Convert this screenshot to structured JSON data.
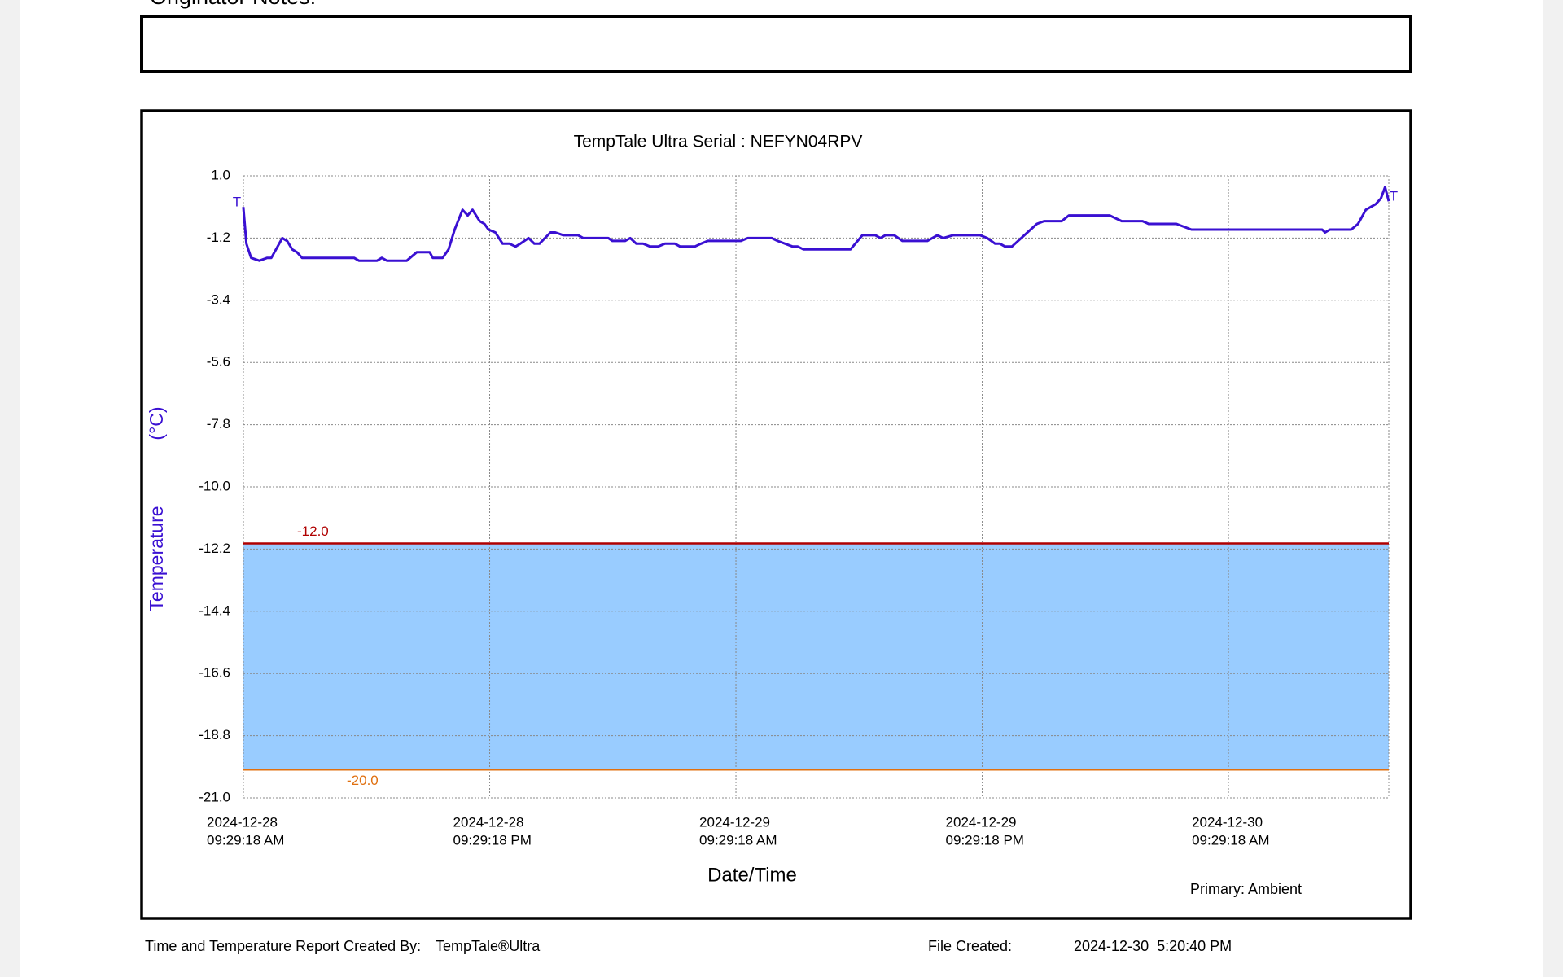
{
  "notes_label": "Originator Notes:",
  "chart_data": {
    "type": "line",
    "title": "TempTale Ultra  Serial : NEFYN04RPV",
    "xlabel": "Date/Time",
    "ylabel": "Temperature",
    "yunit": "(°C)",
    "note": "Primary: Ambient",
    "markers": [
      "T",
      "T"
    ],
    "ylim": [
      -21,
      1
    ],
    "yticks": [
      {
        "value": 1,
        "label": "1.0"
      },
      -1.2,
      -3.4,
      -5.6,
      -7.8,
      {
        "value": -10,
        "label": "-10.0"
      },
      -12.2,
      -14.4,
      -16.6,
      -18.8,
      {
        "value": -21,
        "label": "-21.0"
      }
    ],
    "xlim": [
      "2024-12-28 09:29:18",
      "2024-12-30 17:18"
    ],
    "xticks": [
      {
        "value": "2024-12-28 09:29:18",
        "label": [
          "2024-12-28",
          "09:29:18 AM"
        ]
      },
      {
        "value": "2024-12-28 21:29:18",
        "label": [
          "2024-12-28",
          "09:29:18 PM"
        ]
      },
      {
        "value": "2024-12-29 09:29:18",
        "label": [
          "2024-12-29",
          "09:29:18 AM"
        ]
      },
      {
        "value": "2024-12-29 21:29:18",
        "label": [
          "2024-12-29",
          "09:29:18 PM"
        ]
      },
      {
        "value": "2024-12-30 09:29:18",
        "label": [
          "2024-12-30",
          "09:29:18 AM"
        ]
      }
    ],
    "grid": true,
    "thresholds": [
      {
        "value": -12,
        "label": "-12.0",
        "color": "#b00000"
      },
      {
        "value": -20,
        "label": "-20.0",
        "color": "#e07010"
      }
    ],
    "band_color": "#99ccff",
    "x": [
      "2024-12-28 09:29",
      "2024-12-28 09:38",
      "2024-12-28 09:52",
      "2024-12-28 10:16",
      "2024-12-28 10:39",
      "2024-12-28 10:51",
      "2024-12-28 11:23",
      "2024-12-28 11:37",
      "2024-12-28 11:52",
      "2024-12-28 12:06",
      "2024-12-28 12:21",
      "2024-12-28 14:53",
      "2024-12-28 15:07",
      "2024-12-28 16:00",
      "2024-12-28 16:14",
      "2024-12-28 16:29",
      "2024-12-28 17:27",
      "2024-12-28 17:56",
      "2024-12-28 18:34",
      "2024-12-28 18:43",
      "2024-12-28 19:12",
      "2024-12-28 19:29",
      "2024-12-28 19:47",
      "2024-12-28 20:10",
      "2024-12-28 20:25",
      "2024-12-28 20:39",
      "2024-12-28 21:00",
      "2024-12-28 21:14",
      "2024-12-28 21:26",
      "2024-12-28 21:46",
      "2024-12-28 22:07",
      "2024-12-28 22:27",
      "2024-12-28 22:45",
      "2024-12-28 22:59",
      "2024-12-28 23:23",
      "2024-12-28 23:40",
      "2024-12-28 23:55",
      "2024-12-29 00:27",
      "2024-12-29 00:41",
      "2024-12-29 01:05",
      "2024-12-29 01:48",
      "2024-12-29 02:03",
      "2024-12-29 03:16",
      "2024-12-29 03:28",
      "2024-12-29 04:05",
      "2024-12-29 04:20",
      "2024-12-29 04:38",
      "2024-12-29 04:58",
      "2024-12-29 05:18",
      "2024-12-29 05:42",
      "2024-12-29 06:02",
      "2024-12-29 06:31",
      "2024-12-29 06:46",
      "2024-12-29 07:29",
      "2024-12-29 07:47",
      "2024-12-29 08:07",
      "2024-12-29 09:44",
      "2024-12-29 10:04",
      "2024-12-29 11:14",
      "2024-12-29 11:31",
      "2024-12-29 12:15",
      "2024-12-29 12:30",
      "2024-12-29 12:47",
      "2024-12-29 15:04",
      "2024-12-29 15:25",
      "2024-12-29 15:39",
      "2024-12-29 16:17",
      "2024-12-29 16:32",
      "2024-12-29 16:46",
      "2024-12-29 17:12",
      "2024-12-29 17:36",
      "2024-12-29 18:14",
      "2024-12-29 18:31",
      "2024-12-29 18:49",
      "2024-12-29 19:18",
      "2024-12-29 19:35",
      "2024-12-29 20:04",
      "2024-12-29 21:23",
      "2024-12-29 21:44",
      "2024-12-29 22:07",
      "2024-12-29 22:21",
      "2024-12-29 22:36",
      "2024-12-29 22:56",
      "2024-12-30 00:09",
      "2024-12-30 00:30",
      "2024-12-30 00:50",
      "2024-12-30 01:22",
      "2024-12-30 01:43",
      "2024-12-30 02:00",
      "2024-12-30 02:06",
      "2024-12-30 02:23",
      "2024-12-30 02:38",
      "2024-12-30 03:42",
      "2024-12-30 04:17",
      "2024-12-30 05:18",
      "2024-12-30 05:36",
      "2024-12-30 06:57",
      "2024-12-30 07:41",
      "2024-12-30 14:03",
      "2024-12-30 14:12",
      "2024-12-30 14:26",
      "2024-12-30 15:28",
      "2024-12-30 15:48",
      "2024-12-30 16:11",
      "2024-12-30 16:40",
      "2024-12-30 16:55",
      "2024-12-30 17:07",
      "2024-12-30 17:18"
    ],
    "series": [
      {
        "name": "Ambient",
        "color": "#3a10d2",
        "values": [
          -0.1,
          -1.4,
          -1.9,
          -2.0,
          -1.9,
          -1.9,
          -1.2,
          -1.3,
          -1.6,
          -1.7,
          -1.9,
          -1.9,
          -2.0,
          -2.0,
          -1.9,
          -2.0,
          -2.0,
          -1.7,
          -1.7,
          -1.9,
          -1.9,
          -1.6,
          -0.9,
          -0.2,
          -0.4,
          -0.2,
          -0.6,
          -0.7,
          -0.9,
          -1.0,
          -1.4,
          -1.4,
          -1.5,
          -1.4,
          -1.2,
          -1.4,
          -1.4,
          -1.0,
          -1.0,
          -1.1,
          -1.1,
          -1.2,
          -1.2,
          -1.3,
          -1.3,
          -1.2,
          -1.4,
          -1.4,
          -1.5,
          -1.5,
          -1.4,
          -1.4,
          -1.5,
          -1.5,
          -1.4,
          -1.3,
          -1.3,
          -1.2,
          -1.2,
          -1.3,
          -1.5,
          -1.5,
          -1.6,
          -1.6,
          -1.3,
          -1.1,
          -1.1,
          -1.2,
          -1.1,
          -1.1,
          -1.3,
          -1.3,
          -1.3,
          -1.3,
          -1.1,
          -1.2,
          -1.1,
          -1.1,
          -1.2,
          -1.4,
          -1.4,
          -1.5,
          -1.5,
          -0.7,
          -0.6,
          -0.6,
          -0.6,
          -0.4,
          -0.4,
          -0.4,
          -0.4,
          -0.4,
          -0.4,
          -0.6,
          -0.6,
          -0.7,
          -0.7,
          -0.9,
          -0.9,
          -1.0,
          -0.9,
          -0.9,
          -0.7,
          -0.2,
          0.0,
          0.2,
          0.6,
          0.1
        ]
      }
    ]
  },
  "footer": {
    "created_by_label": "Time and Temperature Report Created By:",
    "created_by": "TempTale®Ultra",
    "file_created_label": "File Created:",
    "file_created": "2024-12-30  5:20:40 PM"
  }
}
